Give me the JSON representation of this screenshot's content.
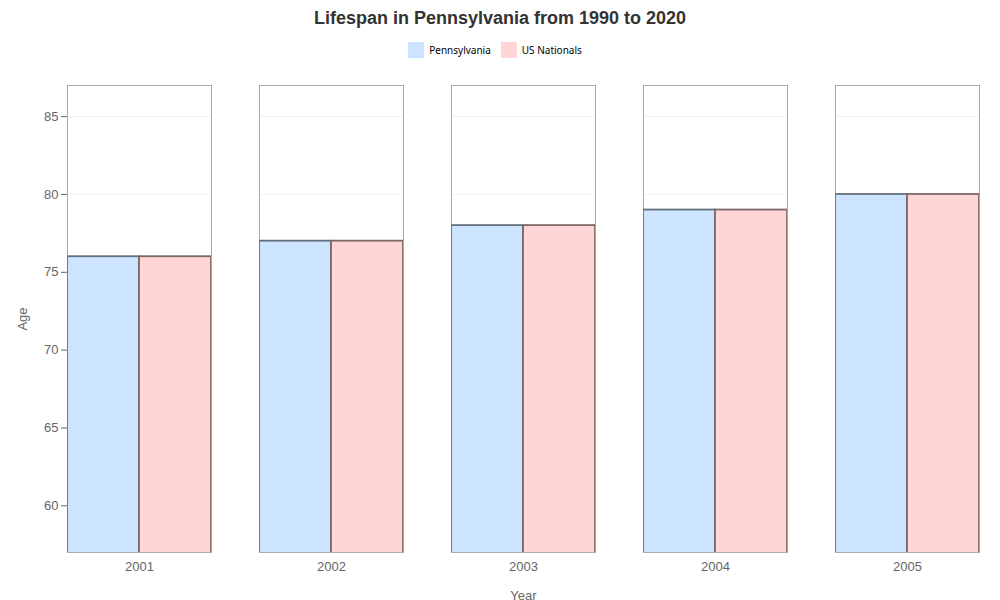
{
  "chart_data": {
    "type": "bar",
    "title": "Lifespan in Pennsylvania from 1990 to 2020",
    "xlabel": "Year",
    "ylabel": "Age",
    "categories": [
      "2001",
      "2002",
      "2003",
      "2004",
      "2005"
    ],
    "series": [
      {
        "name": "Pennsylvania",
        "color": "#cce4ff",
        "values": [
          76,
          77,
          78,
          79,
          80
        ]
      },
      {
        "name": "US Nationals",
        "color": "#ffd5d5",
        "values": [
          76,
          77,
          78,
          79,
          80
        ]
      }
    ],
    "ylim": [
      57,
      87
    ],
    "yticks": [
      60,
      65,
      70,
      75,
      80,
      85
    ],
    "grid": true,
    "legend": "top"
  }
}
